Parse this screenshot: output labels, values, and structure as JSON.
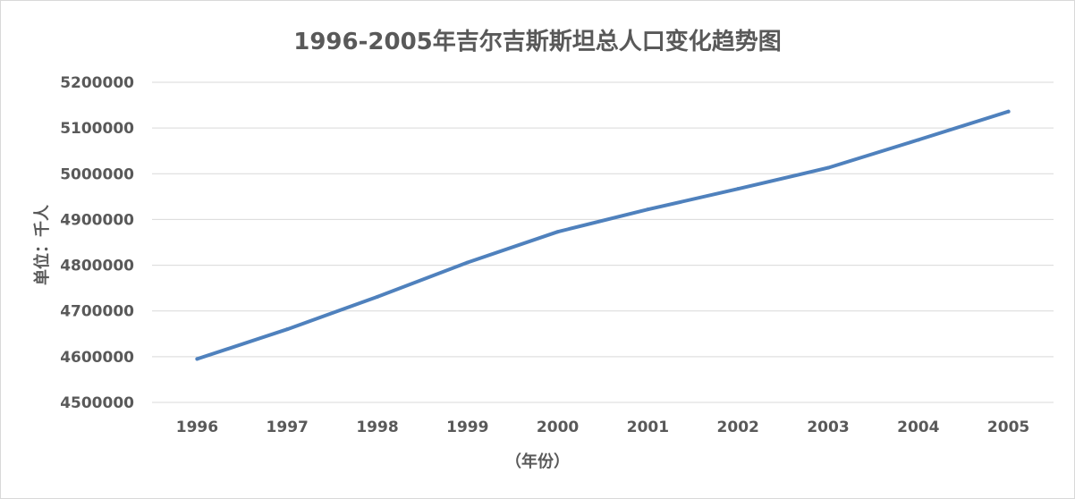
{
  "chart_data": {
    "type": "line",
    "title": "1996-2005年吉尔吉斯斯坦总人口变化趋势图",
    "xlabel": "（年份）",
    "ylabel": "单位：千人",
    "categories": [
      "1996",
      "1997",
      "1998",
      "1999",
      "2000",
      "2001",
      "2002",
      "2003",
      "2004",
      "2005"
    ],
    "series": [
      {
        "values": [
          4595000,
          4660000,
          4731000,
          4806000,
          4873000,
          4922000,
          4967000,
          5013000,
          5074000,
          5136000
        ]
      }
    ],
    "ylim": [
      4500000,
      5200000
    ],
    "yticks": [
      "4500000",
      "4600000",
      "4700000",
      "4800000",
      "4900000",
      "5000000",
      "5100000",
      "5200000"
    ],
    "grid": true,
    "legend": "none",
    "colors": {
      "line": "#4f81bd",
      "grid": "#d9d9d9",
      "text": "#595959"
    }
  }
}
